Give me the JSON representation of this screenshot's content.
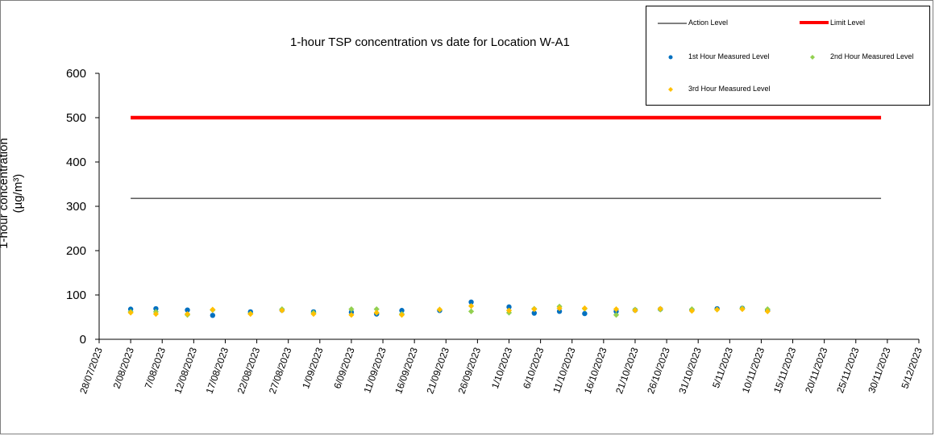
{
  "chart_data": {
    "type": "scatter",
    "title": "1-hour TSP concentration vs date for Location W-A1",
    "ylabel_line1": "1-hour concentration",
    "ylabel_unit": "(µg/m³)",
    "xlabel": "",
    "ylim": [
      0,
      600
    ],
    "yticks": [
      0,
      100,
      200,
      300,
      400,
      500,
      600
    ],
    "xlim": [
      "28/07/2023",
      "5/12/2023"
    ],
    "xticks": [
      "28/07/2023",
      "2/08/2023",
      "7/08/2023",
      "12/08/2023",
      "17/08/2023",
      "22/08/2023",
      "27/08/2023",
      "1/09/2023",
      "6/09/2023",
      "11/09/2023",
      "16/09/2023",
      "21/09/2023",
      "26/09/2023",
      "1/10/2023",
      "6/10/2023",
      "11/10/2023",
      "16/10/2023",
      "21/10/2023",
      "26/10/2023",
      "31/10/2023",
      "5/11/2023",
      "10/11/2023",
      "15/11/2023",
      "20/11/2023",
      "25/11/2023",
      "30/11/2023",
      "5/12/2023"
    ],
    "grid": false,
    "legend_position": "top-right",
    "lines": [
      {
        "name": "Action Level",
        "value": 318,
        "x_start": "2/08/2023",
        "x_end": "29/11/2023",
        "color": "#000000"
      },
      {
        "name": "Limit Level",
        "value": 500,
        "x_start": "2/08/2023",
        "x_end": "29/11/2023",
        "color": "#ff0000"
      }
    ],
    "series": [
      {
        "name": "1st Hour Measured Level",
        "color": "#0070c0",
        "marker": "circle",
        "points": [
          {
            "x": "2/08/2023",
            "y": 68
          },
          {
            "x": "6/08/2023",
            "y": 69
          },
          {
            "x": "11/08/2023",
            "y": 66
          },
          {
            "x": "15/08/2023",
            "y": 54
          },
          {
            "x": "21/08/2023",
            "y": 62
          },
          {
            "x": "26/08/2023",
            "y": 66
          },
          {
            "x": "31/08/2023",
            "y": 62
          },
          {
            "x": "6/09/2023",
            "y": 61
          },
          {
            "x": "10/09/2023",
            "y": 57
          },
          {
            "x": "14/09/2023",
            "y": 65
          },
          {
            "x": "20/09/2023",
            "y": 65
          },
          {
            "x": "25/09/2023",
            "y": 84
          },
          {
            "x": "1/10/2023",
            "y": 73
          },
          {
            "x": "5/10/2023",
            "y": 59
          },
          {
            "x": "9/10/2023",
            "y": 63
          },
          {
            "x": "13/10/2023",
            "y": 58
          },
          {
            "x": "18/10/2023",
            "y": 63
          },
          {
            "x": "21/10/2023",
            "y": 66
          },
          {
            "x": "25/10/2023",
            "y": 68
          },
          {
            "x": "30/10/2023",
            "y": 66
          },
          {
            "x": "3/11/2023",
            "y": 69
          },
          {
            "x": "7/11/2023",
            "y": 70
          },
          {
            "x": "11/11/2023",
            "y": 65
          }
        ]
      },
      {
        "name": "2nd Hour Measured Level",
        "color": "#92d050",
        "marker": "diamond",
        "points": [
          {
            "x": "2/08/2023",
            "y": 62
          },
          {
            "x": "6/08/2023",
            "y": 62
          },
          {
            "x": "11/08/2023",
            "y": 55
          },
          {
            "x": "15/08/2023",
            "y": 66
          },
          {
            "x": "21/08/2023",
            "y": 58
          },
          {
            "x": "26/08/2023",
            "y": 68
          },
          {
            "x": "31/08/2023",
            "y": 60
          },
          {
            "x": "6/09/2023",
            "y": 68
          },
          {
            "x": "10/09/2023",
            "y": 68
          },
          {
            "x": "14/09/2023",
            "y": 57
          },
          {
            "x": "20/09/2023",
            "y": 67
          },
          {
            "x": "25/09/2023",
            "y": 63
          },
          {
            "x": "1/10/2023",
            "y": 60
          },
          {
            "x": "5/10/2023",
            "y": 69
          },
          {
            "x": "9/10/2023",
            "y": 74
          },
          {
            "x": "13/10/2023",
            "y": 69
          },
          {
            "x": "18/10/2023",
            "y": 55
          },
          {
            "x": "21/10/2023",
            "y": 67
          },
          {
            "x": "25/10/2023",
            "y": 67
          },
          {
            "x": "30/10/2023",
            "y": 68
          },
          {
            "x": "3/11/2023",
            "y": 67
          },
          {
            "x": "7/11/2023",
            "y": 70
          },
          {
            "x": "11/11/2023",
            "y": 68
          }
        ]
      },
      {
        "name": "3rd Hour Measured Level",
        "color": "#ffc000",
        "marker": "diamond",
        "points": [
          {
            "x": "2/08/2023",
            "y": 60
          },
          {
            "x": "6/08/2023",
            "y": 57
          },
          {
            "x": "11/08/2023",
            "y": 57
          },
          {
            "x": "15/08/2023",
            "y": 67
          },
          {
            "x": "21/08/2023",
            "y": 57
          },
          {
            "x": "26/08/2023",
            "y": 65
          },
          {
            "x": "31/08/2023",
            "y": 57
          },
          {
            "x": "6/09/2023",
            "y": 55
          },
          {
            "x": "10/09/2023",
            "y": 60
          },
          {
            "x": "14/09/2023",
            "y": 55
          },
          {
            "x": "20/09/2023",
            "y": 67
          },
          {
            "x": "25/09/2023",
            "y": 75
          },
          {
            "x": "1/10/2023",
            "y": 65
          },
          {
            "x": "5/10/2023",
            "y": 68
          },
          {
            "x": "9/10/2023",
            "y": 70
          },
          {
            "x": "13/10/2023",
            "y": 70
          },
          {
            "x": "18/10/2023",
            "y": 68
          },
          {
            "x": "21/10/2023",
            "y": 65
          },
          {
            "x": "25/10/2023",
            "y": 69
          },
          {
            "x": "30/10/2023",
            "y": 64
          },
          {
            "x": "3/11/2023",
            "y": 67
          },
          {
            "x": "7/11/2023",
            "y": 68
          },
          {
            "x": "11/11/2023",
            "y": 63
          }
        ]
      }
    ]
  }
}
